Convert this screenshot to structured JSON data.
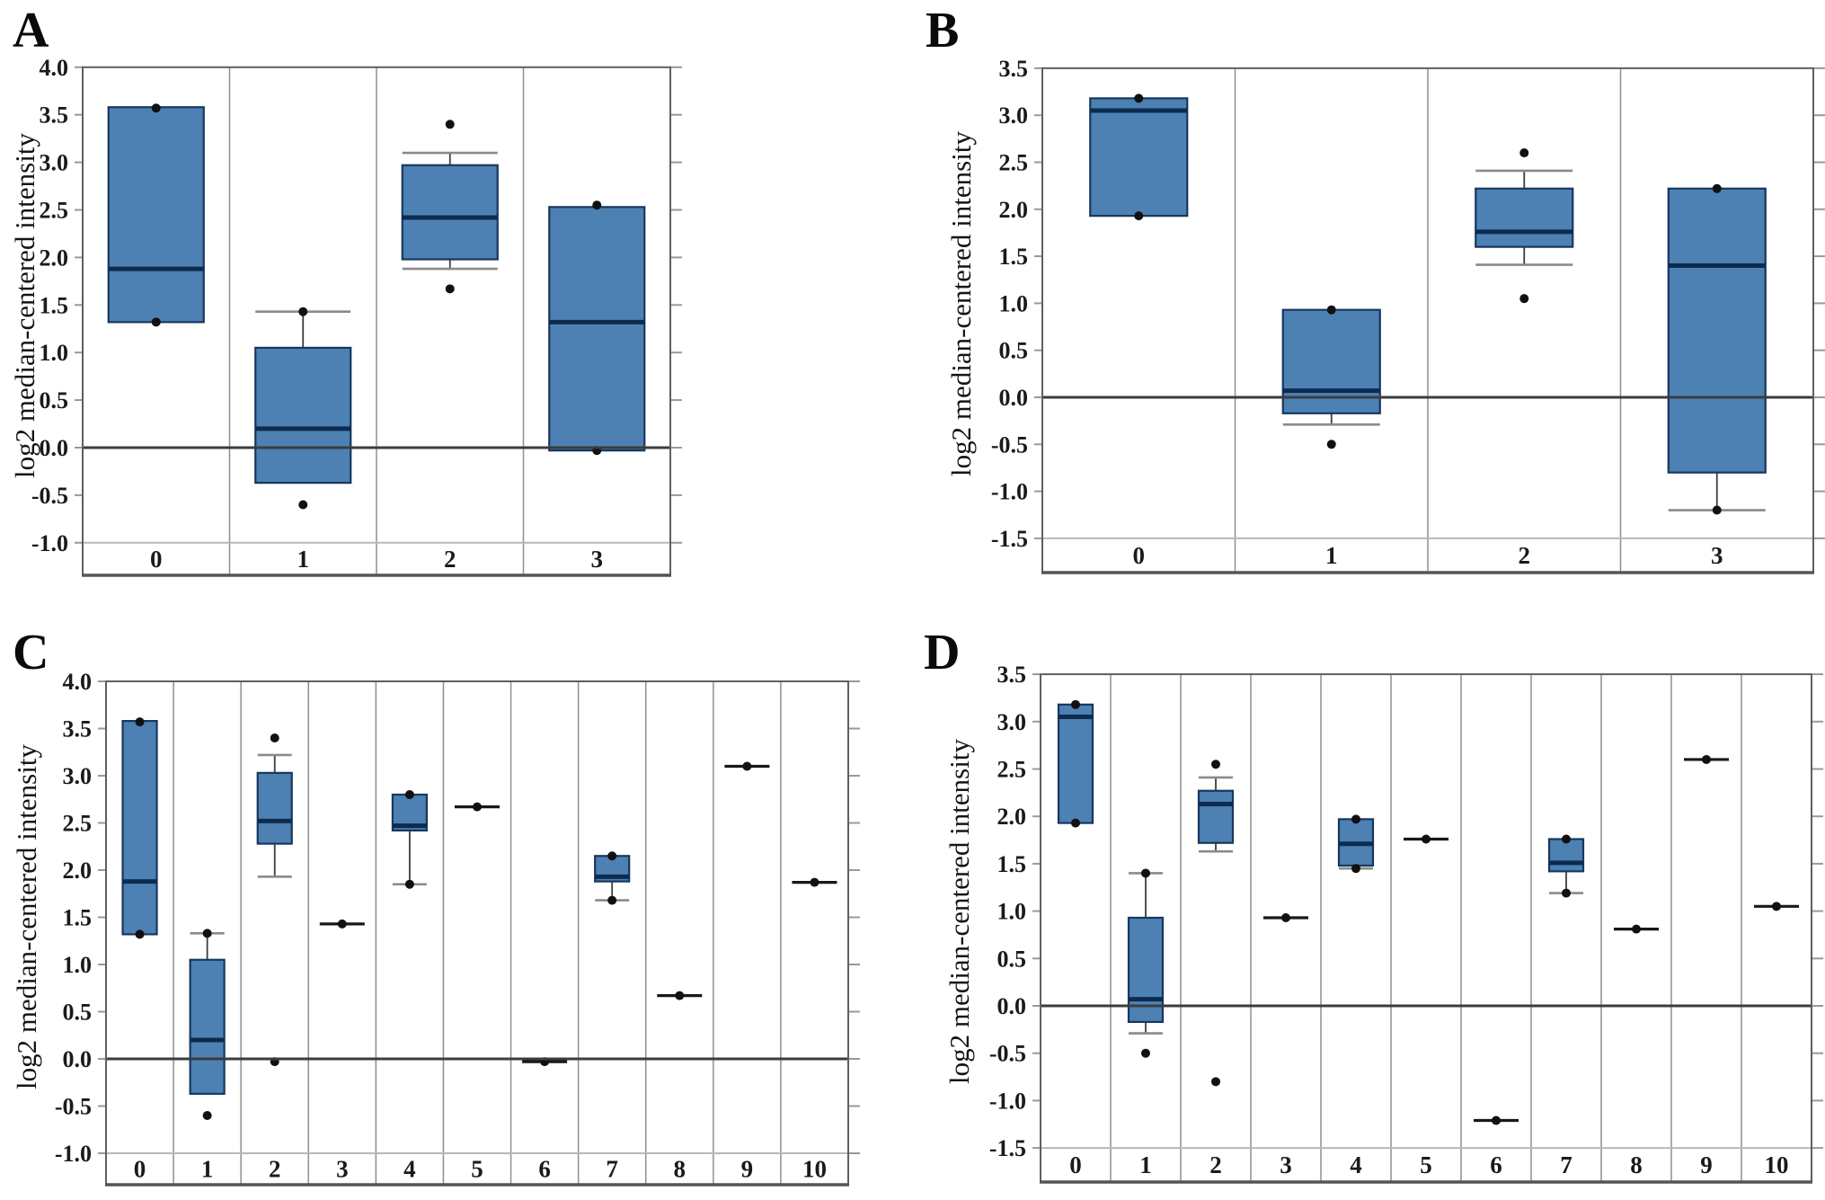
{
  "colors": {
    "box_fill": "#4d81b3",
    "box_stroke": "#17375e",
    "median": "#0d2b4f",
    "zero_line": "#3c3c3c",
    "separator": "#8f8f8f",
    "frame": "#5f5f5f",
    "grid_light": "#b8b8b8",
    "whisker": "#3d3d3d",
    "cap": "#8a8a8a",
    "point": "#111111",
    "text": "#1a1a1a"
  },
  "chart_data": [
    {
      "id": "A",
      "type": "box",
      "title": "A",
      "ylabel": "log2 median-centered intensity",
      "xlabel": "",
      "ylim": [
        -1.0,
        4.0
      ],
      "yticks": [
        4.0,
        3.5,
        3.0,
        2.5,
        2.0,
        1.5,
        1.0,
        0.5,
        0.0,
        -0.5,
        -1.0
      ],
      "grid": "zero-line and lowest tick only",
      "legend": "none",
      "categories": [
        "0",
        "1",
        "2",
        "3"
      ],
      "boxes": [
        {
          "cat": "0",
          "q1": 1.32,
          "median": 1.88,
          "q3": 3.58,
          "points": [
            3.57,
            1.32
          ]
        },
        {
          "cat": "1",
          "q1": -0.37,
          "median": 0.2,
          "q3": 1.05,
          "whisker_high": 1.43,
          "points": [
            1.43
          ],
          "outliers": [
            -0.6
          ]
        },
        {
          "cat": "2",
          "q1": 1.98,
          "median": 2.42,
          "q3": 2.97,
          "whisker_low": 1.88,
          "whisker_high": 3.1,
          "outliers": [
            3.4,
            1.67
          ]
        },
        {
          "cat": "3",
          "q1": -0.03,
          "median": 1.32,
          "q3": 2.53,
          "points": [
            2.55,
            -0.03
          ]
        }
      ]
    },
    {
      "id": "B",
      "type": "box",
      "title": "B",
      "ylabel": "log2 median-centered intensity",
      "xlabel": "",
      "ylim": [
        -1.5,
        3.5
      ],
      "yticks": [
        3.5,
        3.0,
        2.5,
        2.0,
        1.5,
        1.0,
        0.5,
        0.0,
        -0.5,
        -1.0,
        -1.5
      ],
      "grid": "zero-line and lowest tick only",
      "legend": "none",
      "categories": [
        "0",
        "1",
        "2",
        "3"
      ],
      "boxes": [
        {
          "cat": "0",
          "q1": 1.93,
          "median": 3.05,
          "q3": 3.18,
          "points": [
            3.18,
            1.93
          ]
        },
        {
          "cat": "1",
          "q1": -0.17,
          "median": 0.07,
          "q3": 0.93,
          "whisker_low": -0.29,
          "points": [
            0.93
          ],
          "outliers": [
            -0.5
          ]
        },
        {
          "cat": "2",
          "q1": 1.6,
          "median": 1.76,
          "q3": 2.22,
          "whisker_low": 1.41,
          "whisker_high": 2.41,
          "outliers": [
            2.6,
            1.05
          ]
        },
        {
          "cat": "3",
          "q1": -0.8,
          "median": 1.4,
          "q3": 2.22,
          "whisker_low": -1.2,
          "points": [
            2.22,
            -1.2
          ]
        }
      ]
    },
    {
      "id": "C",
      "type": "box",
      "title": "C",
      "ylabel": "log2 median-centered intensity",
      "xlabel": "",
      "ylim": [
        -1.0,
        4.0
      ],
      "yticks": [
        4.0,
        3.5,
        3.0,
        2.5,
        2.0,
        1.5,
        1.0,
        0.5,
        0.0,
        -0.5,
        -1.0
      ],
      "grid": "zero-line and lowest tick only",
      "legend": "none",
      "categories": [
        "0",
        "1",
        "2",
        "3",
        "4",
        "5",
        "6",
        "7",
        "8",
        "9",
        "10"
      ],
      "boxes": [
        {
          "cat": "0",
          "q1": 1.32,
          "median": 1.88,
          "q3": 3.58,
          "points": [
            3.57,
            1.32
          ]
        },
        {
          "cat": "1",
          "q1": -0.37,
          "median": 0.2,
          "q3": 1.05,
          "whisker_high": 1.33,
          "points": [
            1.33
          ],
          "outliers": [
            -0.6
          ]
        },
        {
          "cat": "2",
          "q1": 2.28,
          "median": 2.52,
          "q3": 3.03,
          "whisker_low": 1.93,
          "whisker_high": 3.22,
          "outliers": [
            3.4,
            -0.03
          ]
        },
        {
          "cat": "3",
          "value": 1.43
        },
        {
          "cat": "4",
          "q1": 2.42,
          "median": 2.47,
          "q3": 2.8,
          "whisker_low": 1.85,
          "points": [
            2.8,
            1.85
          ]
        },
        {
          "cat": "5",
          "value": 2.67
        },
        {
          "cat": "6",
          "value": -0.03
        },
        {
          "cat": "7",
          "q1": 1.88,
          "median": 1.93,
          "q3": 2.15,
          "whisker_low": 1.68,
          "points": [
            2.15,
            1.68
          ]
        },
        {
          "cat": "8",
          "value": 0.67
        },
        {
          "cat": "9",
          "value": 3.1
        },
        {
          "cat": "10",
          "value": 1.87
        }
      ]
    },
    {
      "id": "D",
      "type": "box",
      "title": "D",
      "ylabel": "log2 median-centered intensity",
      "xlabel": "",
      "ylim": [
        -1.5,
        3.5
      ],
      "yticks": [
        3.5,
        3.0,
        2.5,
        2.0,
        1.5,
        1.0,
        0.5,
        0.0,
        -0.5,
        -1.0,
        -1.5
      ],
      "grid": "zero-line and lowest tick only",
      "legend": "none",
      "categories": [
        "0",
        "1",
        "2",
        "3",
        "4",
        "5",
        "6",
        "7",
        "8",
        "9",
        "10"
      ],
      "boxes": [
        {
          "cat": "0",
          "q1": 1.93,
          "median": 3.05,
          "q3": 3.18,
          "points": [
            3.18,
            1.93
          ]
        },
        {
          "cat": "1",
          "q1": -0.17,
          "median": 0.07,
          "q3": 0.93,
          "whisker_high": 1.4,
          "whisker_low": -0.29,
          "points": [
            1.4
          ],
          "outliers": [
            -0.5
          ]
        },
        {
          "cat": "2",
          "q1": 1.72,
          "median": 2.13,
          "q3": 2.27,
          "whisker_low": 1.63,
          "whisker_high": 2.41,
          "outliers": [
            2.55,
            -0.8
          ]
        },
        {
          "cat": "3",
          "value": 0.93
        },
        {
          "cat": "4",
          "q1": 1.48,
          "median": 1.71,
          "q3": 1.97,
          "whisker_low": 1.45,
          "points": [
            1.97,
            1.45
          ]
        },
        {
          "cat": "5",
          "value": 1.76
        },
        {
          "cat": "6",
          "value": -1.21
        },
        {
          "cat": "7",
          "q1": 1.42,
          "median": 1.51,
          "q3": 1.76,
          "whisker_low": 1.19,
          "points": [
            1.76,
            1.19
          ]
        },
        {
          "cat": "8",
          "value": 0.81
        },
        {
          "cat": "9",
          "value": 2.6
        },
        {
          "cat": "10",
          "value": 1.05
        }
      ]
    }
  ]
}
